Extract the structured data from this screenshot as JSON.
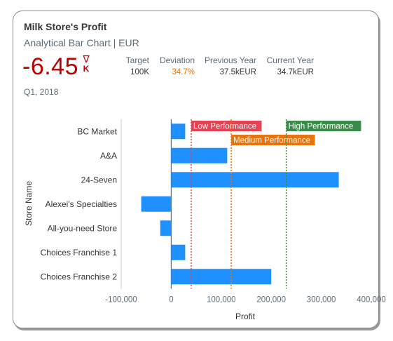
{
  "header": {
    "title": "Milk Store's Profit",
    "subtitle": "Analytical Bar Chart | EUR",
    "kpi_value": "-6.45",
    "kpi_unit": "K",
    "trend_symbol": "∇",
    "period": "Q1, 2018",
    "metrics": [
      {
        "label": "Target",
        "value": "100K"
      },
      {
        "label": "Deviation",
        "value": "34.7%"
      },
      {
        "label": "Previous Year",
        "value": "37.5kEUR"
      },
      {
        "label": "Current Year",
        "value": "34.7kEUR"
      }
    ]
  },
  "chart_data": {
    "type": "bar",
    "orientation": "horizontal",
    "categories": [
      "BC Market",
      "A&A",
      "24-Seven",
      "Alexei's Specialties",
      "All-you-need Store",
      "Choices Franchise 1",
      "Choices Franchise 2"
    ],
    "values": [
      28000,
      112000,
      335000,
      -60000,
      -22000,
      28000,
      200000
    ],
    "xlabel": "Profit",
    "ylabel": "Store Name",
    "xlim": [
      -100000,
      400000
    ],
    "xticks": [
      "-100,000",
      "0",
      "100,000",
      "200,000",
      "300,000",
      "400,000"
    ],
    "bar_color": "#1e90ff",
    "reference_lines": [
      {
        "label": "Low Performance",
        "value": 40000,
        "color": "#e34352"
      },
      {
        "label": "Medium Performance",
        "value": 120000,
        "color": "#e9730c"
      },
      {
        "label": "High Performance",
        "value": 230000,
        "color": "#3d8b4a"
      }
    ]
  }
}
